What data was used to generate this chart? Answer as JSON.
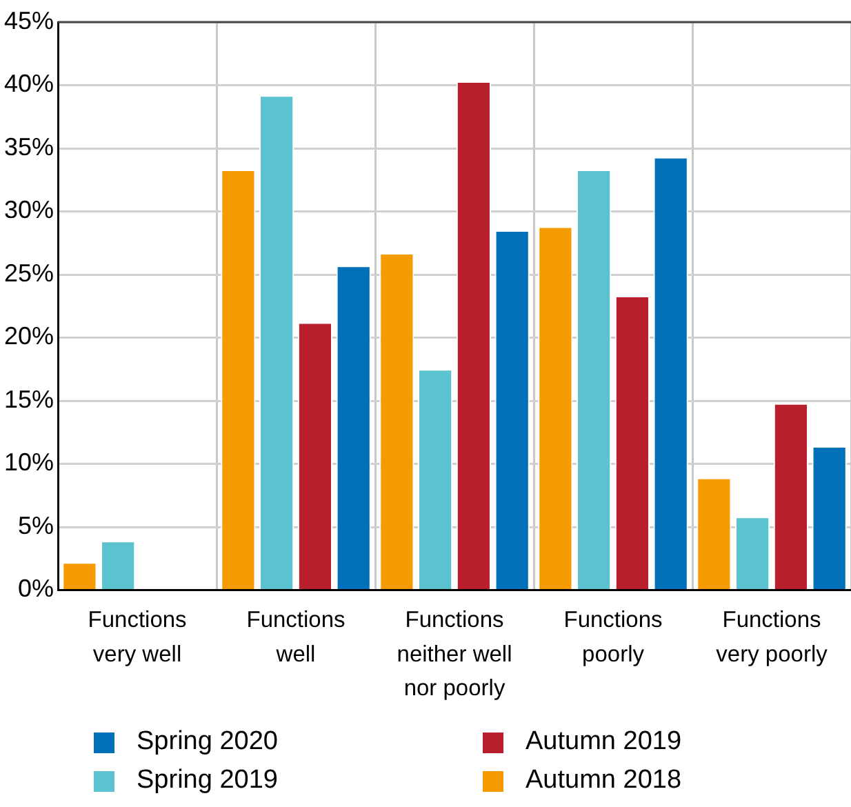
{
  "chart_data": {
    "type": "bar",
    "categories": [
      "Functions\nvery well",
      "Functions\nwell",
      "Functions\nneither well\nnor poorly",
      "Functions\npoorly",
      "Functions\nvery poorly"
    ],
    "series": [
      {
        "name": "Autumn 2018",
        "color": "#f59b00",
        "values": [
          2.2,
          33.3,
          26.7,
          28.8,
          8.9
        ]
      },
      {
        "name": "Spring 2019",
        "color": "#5bc2d0",
        "values": [
          3.9,
          39.2,
          17.5,
          33.3,
          5.8
        ]
      },
      {
        "name": "Autumn 2019",
        "color": "#ba1f2e",
        "values": [
          0,
          21.2,
          40.3,
          23.3,
          14.8
        ]
      },
      {
        "name": "Spring 2020",
        "color": "#0070b8",
        "values": [
          0,
          25.7,
          28.5,
          34.3,
          11.4
        ]
      }
    ],
    "ylim": [
      0,
      45
    ],
    "yticks": [
      {
        "value": 0,
        "label": "0%"
      },
      {
        "value": 5,
        "label": "5%"
      },
      {
        "value": 10,
        "label": "10%"
      },
      {
        "value": 15,
        "label": "15%"
      },
      {
        "value": 20,
        "label": "20%"
      },
      {
        "value": 25,
        "label": "25%"
      },
      {
        "value": 30,
        "label": "30%"
      },
      {
        "value": 35,
        "label": "35%"
      },
      {
        "value": 40,
        "label": "40%"
      },
      {
        "value": 45,
        "label": "45%"
      }
    ],
    "grid": true,
    "legend": "bottom"
  }
}
